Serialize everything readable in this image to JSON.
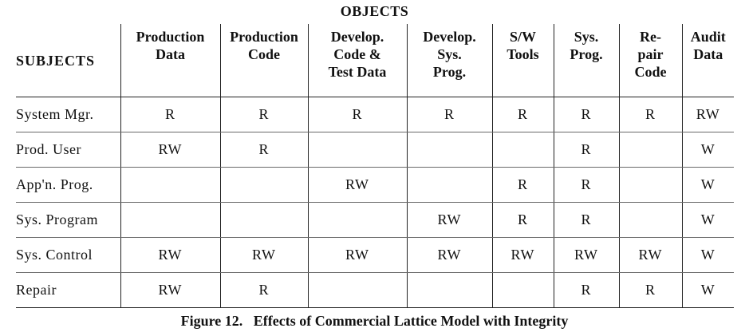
{
  "objects_title": "OBJECTS",
  "subjects_header": "SUBJECTS",
  "columns": [
    {
      "lines": [
        "Production",
        "Data"
      ]
    },
    {
      "lines": [
        "Production",
        "Code"
      ]
    },
    {
      "lines": [
        "Develop.",
        "Code &",
        "Test Data"
      ]
    },
    {
      "lines": [
        "Develop.",
        "Sys.",
        "Prog."
      ]
    },
    {
      "lines": [
        "S/W",
        "Tools"
      ]
    },
    {
      "lines": [
        "Sys.",
        "Prog."
      ]
    },
    {
      "lines": [
        "Re-",
        "pair",
        "Code"
      ]
    },
    {
      "lines": [
        "Audit",
        "Data"
      ]
    }
  ],
  "rows": [
    {
      "subject": "System Mgr.",
      "cells": [
        "R",
        "R",
        "R",
        "R",
        "R",
        "R",
        "R",
        "RW"
      ]
    },
    {
      "subject": "Prod. User",
      "cells": [
        "RW",
        "R",
        "",
        "",
        "",
        "R",
        "",
        "W"
      ]
    },
    {
      "subject": "App'n. Prog.",
      "cells": [
        "",
        "",
        "RW",
        "",
        "R",
        "R",
        "",
        "W"
      ]
    },
    {
      "subject": "Sys. Program",
      "cells": [
        "",
        "",
        "",
        "RW",
        "R",
        "R",
        "",
        "W"
      ]
    },
    {
      "subject": "Sys. Control",
      "cells": [
        "RW",
        "RW",
        "RW",
        "RW",
        "RW",
        "RW",
        "RW",
        "W"
      ]
    },
    {
      "subject": "Repair",
      "cells": [
        "RW",
        "R",
        "",
        "",
        "",
        "R",
        "R",
        "W"
      ]
    }
  ],
  "caption": "Figure 12.   Effects of Commercial Lattice Model with Integrity"
}
